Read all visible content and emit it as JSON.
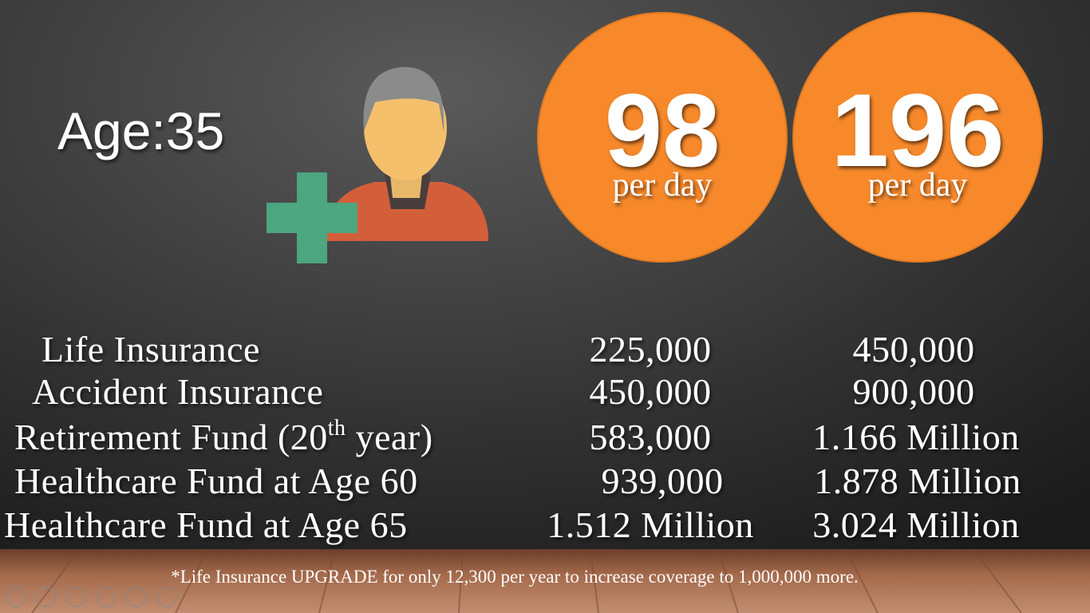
{
  "slide": {
    "age": "Age:35",
    "circles": [
      {
        "number": "98",
        "unit": "per day"
      },
      {
        "number": "196",
        "unit": "per day"
      }
    ],
    "table": {
      "rows": [
        {
          "label": "Life Insurance",
          "values": [
            "225,000",
            "450,000"
          ]
        },
        {
          "label": "Accident Insurance",
          "values": [
            "450,000",
            "900,000"
          ]
        },
        {
          "label": [
            "Retirement Fund (20",
            "th",
            " year)"
          ],
          "values": [
            "583,000",
            "1.166 Million"
          ]
        },
        {
          "label": "Healthcare Fund at Age 60",
          "values": [
            "939,000",
            "1.878 Million"
          ]
        },
        {
          "label": "Healthcare Fund at Age 65",
          "values": [
            "1.512 Million",
            "3.024 Million"
          ]
        }
      ]
    },
    "footnote": "*Life Insurance UPGRADE for only 12,300 per year to increase coverage to 1,000,000 more."
  }
}
